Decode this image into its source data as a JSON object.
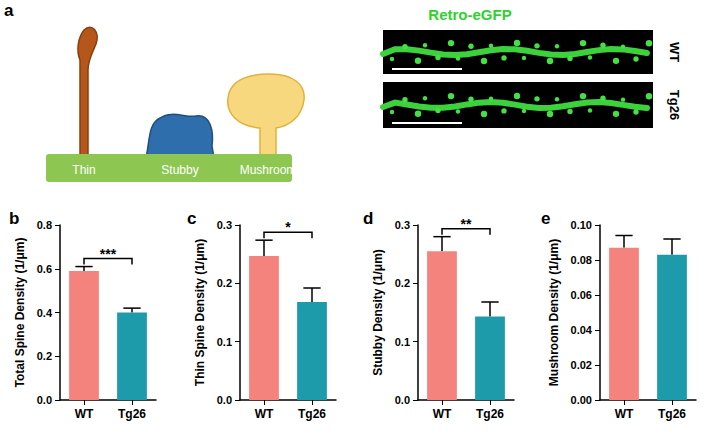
{
  "diagram": {
    "panel": "a",
    "spine_types": [
      "Thin",
      "Stubby",
      "Mushroom"
    ],
    "image_title": "Retro-eGFP",
    "image_rows": [
      "WT",
      "Tg26"
    ]
  },
  "chart_data": [
    {
      "type": "bar",
      "panel": "b",
      "y_label": "Total Spine Density (1/μm)",
      "categories": [
        "WT",
        "Tg26"
      ],
      "values": [
        0.59,
        0.4
      ],
      "errors": [
        0.02,
        0.02
      ],
      "colors": [
        "#F4837D",
        "#1D9BAA"
      ],
      "annotation": "***",
      "ylim": [
        0,
        0.8
      ],
      "yticks": [
        {
          "value": 0,
          "label": "0.0"
        },
        0.2,
        0.4,
        0.6,
        0.8
      ],
      "grid": false
    },
    {
      "type": "bar",
      "panel": "c",
      "y_label": "Thin Spine Density (1/μm)",
      "categories": [
        "WT",
        "Tg26"
      ],
      "values": [
        0.247,
        0.168
      ],
      "errors": [
        0.027,
        0.024
      ],
      "colors": [
        "#F4837D",
        "#1D9BAA"
      ],
      "annotation": "*",
      "ylim": [
        0,
        0.3
      ],
      "yticks": [
        {
          "value": 0,
          "label": "0.0"
        },
        0.1,
        0.2,
        0.3
      ],
      "grid": false
    },
    {
      "type": "bar",
      "panel": "d",
      "y_label": "Stubby Density (1/μm)",
      "categories": [
        "WT",
        "Tg26"
      ],
      "values": [
        0.255,
        0.143
      ],
      "errors": [
        0.025,
        0.025
      ],
      "colors": [
        "#F4837D",
        "#1D9BAA"
      ],
      "annotation": "**",
      "ylim": [
        0,
        0.3
      ],
      "yticks": [
        {
          "value": 0,
          "label": "0.0"
        },
        0.1,
        0.2,
        0.3
      ],
      "grid": false
    },
    {
      "type": "bar",
      "panel": "e",
      "y_label": "Mushroom Density (1/μm)",
      "categories": [
        "WT",
        "Tg26"
      ],
      "values": [
        0.087,
        0.083
      ],
      "errors": [
        0.007,
        0.009
      ],
      "colors": [
        "#F4837D",
        "#1D9BAA"
      ],
      "ylim": [
        0,
        0.1
      ],
      "yticks": [
        {
          "value": 0,
          "label": "0.00"
        },
        {
          "value": 0.02,
          "label": "0.02"
        },
        {
          "value": 0.04,
          "label": "0.04"
        },
        {
          "value": 0.06,
          "label": "0.06"
        },
        {
          "value": 0.08,
          "label": "0.08"
        },
        {
          "value": 0.1,
          "label": "0.10"
        }
      ],
      "grid": false
    }
  ]
}
